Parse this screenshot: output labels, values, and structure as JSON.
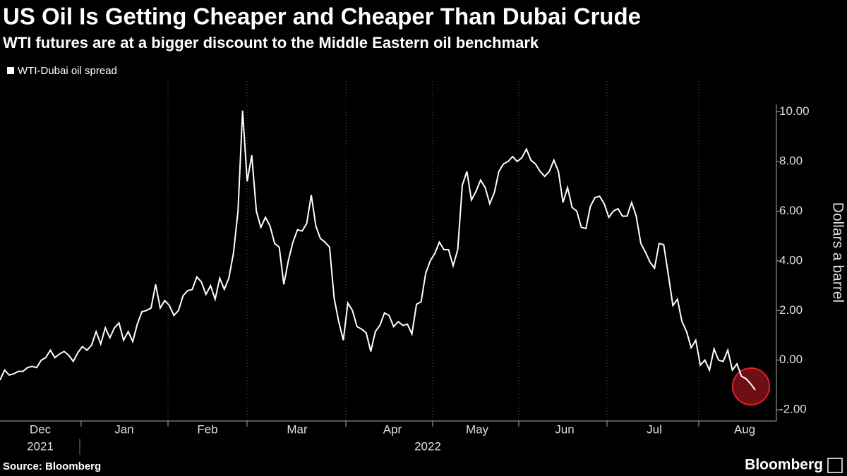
{
  "chart_data": {
    "type": "line",
    "title": "US Oil Is Getting Cheaper and Cheaper Than Dubai Crude",
    "subtitle": "WTI futures are at a bigger discount to the Middle Eastern oil benchmark",
    "y_label": "Dollars a barrel",
    "source": "Source: Bloomberg",
    "brand": "Bloomberg",
    "month_labels": [
      "Dec",
      "Jan",
      "Feb",
      "Mar",
      "Apr",
      "May",
      "Jun",
      "Jul",
      "Aug"
    ],
    "year_labels": [
      "2021",
      "2022"
    ],
    "ylim": [
      -2.45,
      10.3
    ],
    "yticks": [
      {
        "value": -2,
        "label": "-2.00"
      },
      {
        "value": 0,
        "label": "0.00"
      },
      {
        "value": 2,
        "label": "2.00"
      },
      {
        "value": 4,
        "label": "4.00"
      },
      {
        "value": 6,
        "label": "6.00"
      },
      {
        "value": 8,
        "label": "8.00"
      },
      {
        "value": 10,
        "label": "10.00"
      }
    ],
    "highlight_last": true,
    "series": [
      {
        "name": "WTI-Dubai oil spread",
        "color": "#ffffff",
        "values": [
          -0.8,
          -0.4,
          -0.6,
          -0.55,
          -0.45,
          -0.45,
          -0.3,
          -0.25,
          -0.3,
          0.0,
          0.1,
          0.4,
          0.1,
          0.25,
          0.35,
          0.2,
          -0.05,
          0.3,
          0.55,
          0.4,
          0.6,
          1.15,
          0.65,
          1.3,
          0.9,
          1.3,
          1.5,
          0.8,
          1.15,
          0.75,
          1.45,
          1.95,
          2.0,
          2.1,
          3.05,
          2.1,
          2.4,
          2.2,
          1.8,
          2.0,
          2.6,
          2.8,
          2.85,
          3.35,
          3.15,
          2.65,
          3.0,
          2.45,
          3.3,
          2.85,
          3.3,
          4.3,
          6.0,
          10.05,
          7.2,
          8.25,
          6.0,
          5.35,
          5.75,
          5.4,
          4.7,
          4.55,
          3.05,
          4.0,
          4.75,
          5.25,
          5.2,
          5.5,
          6.65,
          5.4,
          4.9,
          4.75,
          4.55,
          2.5,
          1.55,
          0.8,
          2.3,
          2.0,
          1.35,
          1.25,
          1.1,
          0.35,
          1.15,
          1.4,
          1.9,
          1.8,
          1.35,
          1.55,
          1.4,
          1.45,
          1.05,
          2.25,
          2.35,
          3.5,
          4.0,
          4.3,
          4.75,
          4.45,
          4.45,
          3.8,
          4.45,
          7.05,
          7.6,
          6.45,
          6.8,
          7.25,
          6.95,
          6.3,
          6.75,
          7.6,
          7.9,
          8.0,
          8.2,
          8.0,
          8.15,
          8.5,
          8.05,
          7.9,
          7.6,
          7.4,
          7.6,
          8.05,
          7.6,
          6.35,
          6.95,
          6.15,
          6.0,
          5.35,
          5.3,
          6.2,
          6.55,
          6.6,
          6.3,
          5.75,
          6.0,
          6.1,
          5.8,
          5.8,
          6.35,
          5.8,
          4.7,
          4.35,
          3.95,
          3.7,
          4.7,
          4.65,
          3.45,
          2.2,
          2.45,
          1.55,
          1.15,
          0.5,
          0.8,
          -0.2,
          0.0,
          -0.4,
          0.45,
          0.0,
          -0.05,
          0.4,
          -0.4,
          -0.15,
          -0.65,
          -0.75,
          -0.95,
          -1.2
        ]
      }
    ]
  }
}
